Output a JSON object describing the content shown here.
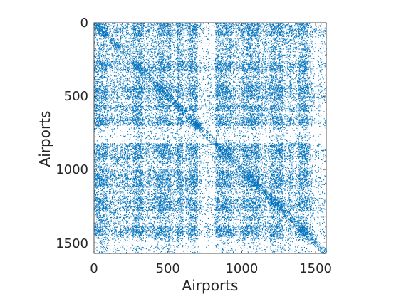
{
  "chart_data": {
    "type": "heatmap",
    "subtype": "sparsity-pattern (spy plot)",
    "title": "",
    "xlabel": "Airports",
    "ylabel": "Airports",
    "xlim": [
      0,
      1572
    ],
    "ylim": [
      1572,
      0
    ],
    "y_direction": "reversed (0 at top)",
    "xticks": [
      0,
      500,
      1000,
      1500
    ],
    "yticks": [
      0,
      500,
      1000,
      1500
    ],
    "xtick_labels": [
      "0",
      "500",
      "1000",
      "1500"
    ],
    "ytick_labels": [
      "0",
      "500",
      "1000",
      "1500"
    ],
    "matrix_size": [
      1572,
      1572
    ],
    "symmetric": true,
    "marker_color": "#0072BD",
    "grid": false,
    "legend": "none",
    "dense_bands": [
      {
        "from": 0,
        "to": 90
      },
      {
        "from": 260,
        "to": 330
      },
      {
        "from": 420,
        "to": 520
      },
      {
        "from": 560,
        "to": 600
      },
      {
        "from": 640,
        "to": 700
      },
      {
        "from": 820,
        "to": 930
      },
      {
        "from": 1000,
        "to": 1120
      },
      {
        "from": 1190,
        "to": 1280
      },
      {
        "from": 1380,
        "to": 1450
      }
    ],
    "sparse_bands": [
      {
        "from": 700,
        "to": 820
      },
      {
        "from": 1480,
        "to": 1572
      }
    ]
  }
}
